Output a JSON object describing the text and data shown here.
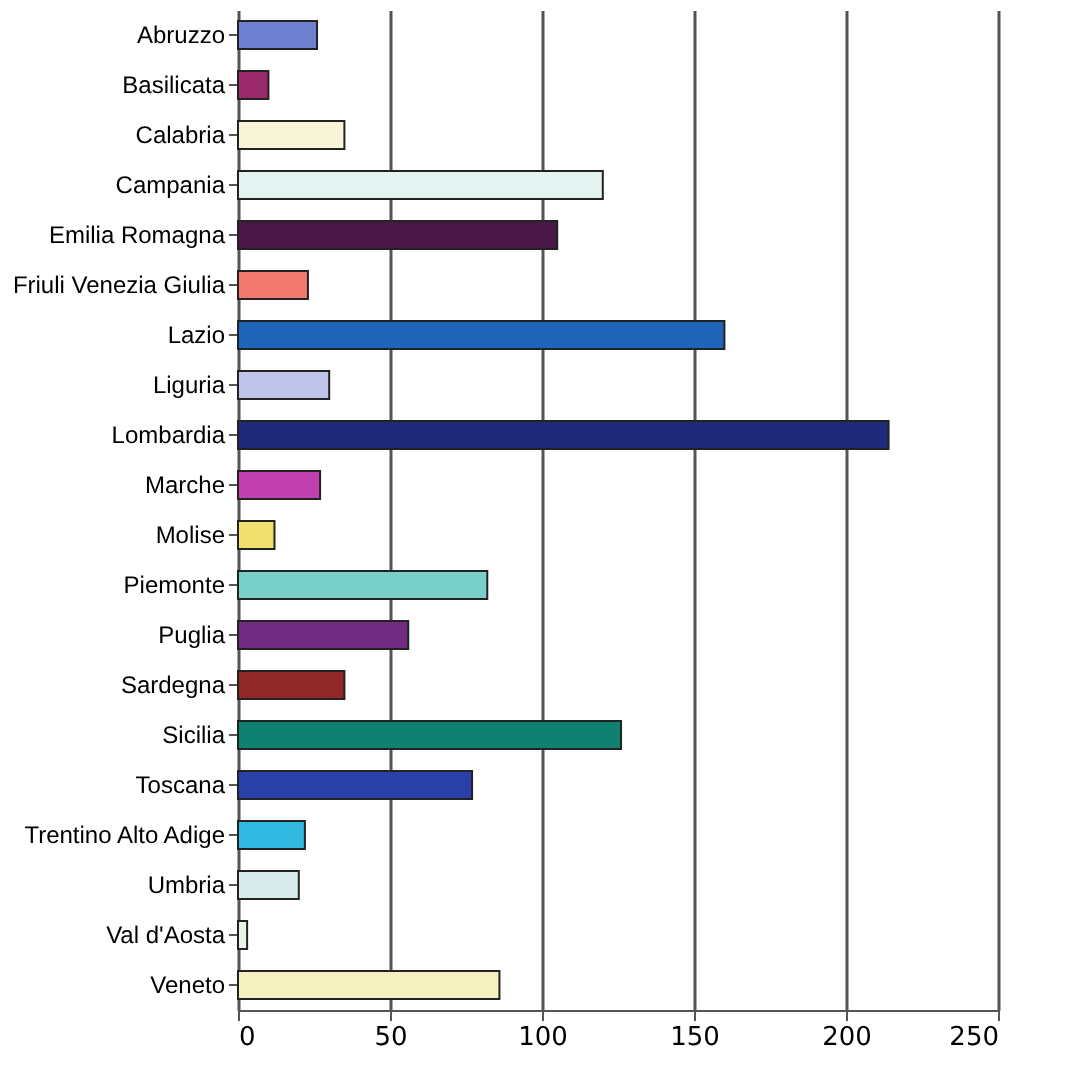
{
  "chart_data": {
    "type": "bar",
    "orientation": "horizontal",
    "categories": [
      "Abruzzo",
      "Basilicata",
      "Calabria",
      "Campania",
      "Emilia Romagna",
      "Friuli Venezia Giulia",
      "Lazio",
      "Liguria",
      "Lombardia",
      "Marche",
      "Molise",
      "Piemonte",
      "Puglia",
      "Sardegna",
      "Sicilia",
      "Toscana",
      "Trentino Alto Adige",
      "Umbria",
      "Val d'Aosta",
      "Veneto"
    ],
    "values": [
      26,
      10,
      35,
      120,
      105,
      23,
      160,
      30,
      214,
      27,
      12,
      82,
      56,
      35,
      126,
      77,
      22,
      20,
      3,
      86
    ],
    "colors": [
      "#6f7fcf",
      "#9b2a6a",
      "#f8f4d8",
      "#e4f2f0",
      "#4a1848",
      "#f47a70",
      "#1e64b8",
      "#c0c4e8",
      "#1f2a78",
      "#c040b0",
      "#f0e070",
      "#78d0c8",
      "#702a80",
      "#902828",
      "#108070",
      "#2840a8",
      "#30b8e0",
      "#d8ecec",
      "#e8f4e8",
      "#f4f0c0"
    ],
    "xlim": [
      0,
      250
    ],
    "xticks": [
      0,
      50,
      100,
      150,
      200,
      250
    ],
    "grid": "x"
  }
}
